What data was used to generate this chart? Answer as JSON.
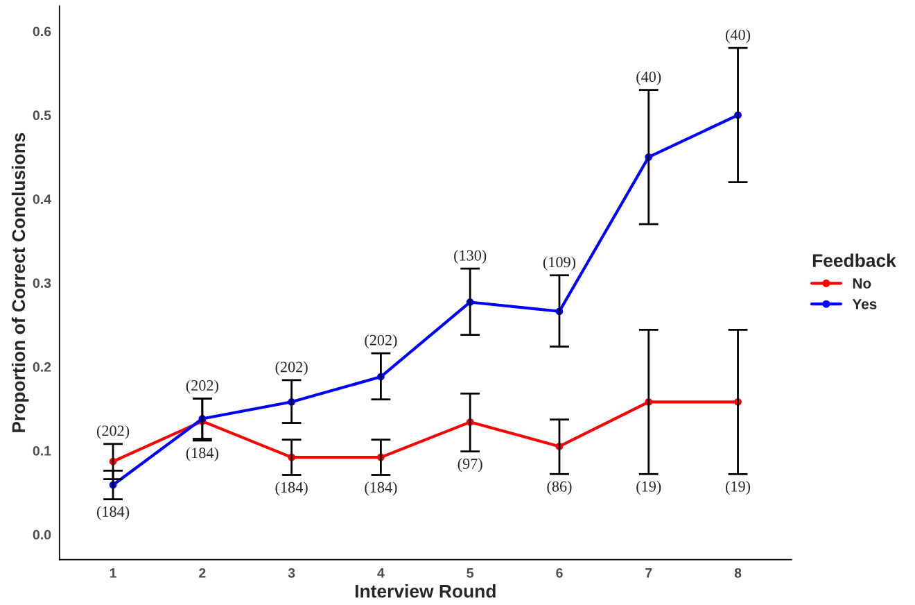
{
  "chart_data": {
    "type": "line",
    "xlabel": "Interview Round",
    "ylabel": "Proportion of Correct Conclusions",
    "legend_title": "Feedback",
    "legend": "right",
    "grid": false,
    "marker": "circle",
    "line_style": "solid",
    "categories": [
      "1",
      "2",
      "3",
      "4",
      "5",
      "6",
      "7",
      "8"
    ],
    "ylim": [
      -0.03,
      0.63
    ],
    "yticks": [
      {
        "value": 0,
        "label": "0.0"
      },
      0.1,
      0.2,
      0.3,
      0.4,
      0.5,
      0.6
    ],
    "series": [
      {
        "name": "No",
        "color": "#ff0000",
        "values": [
          0.087,
          0.135,
          0.092,
          0.092,
          0.134,
          0.105,
          0.158,
          0.158
        ],
        "errors": [
          [
            0.066,
            0.108
          ],
          [
            0.112,
            0.162
          ],
          [
            0.071,
            0.113
          ],
          [
            0.071,
            0.113
          ],
          [
            0.099,
            0.168
          ],
          [
            0.072,
            0.137
          ],
          [
            0.072,
            0.244
          ],
          [
            0.072,
            0.244
          ]
        ]
      },
      {
        "name": "Yes",
        "color": "#0000ff",
        "values": [
          0.059,
          0.138,
          0.158,
          0.188,
          0.277,
          0.266,
          0.45,
          0.5
        ],
        "errors": [
          [
            0.042,
            0.076
          ],
          [
            0.114,
            0.162
          ],
          [
            0.133,
            0.184
          ],
          [
            0.161,
            0.216
          ],
          [
            0.238,
            0.317
          ],
          [
            0.224,
            0.309
          ],
          [
            0.37,
            0.53
          ],
          [
            0.42,
            0.58
          ]
        ]
      }
    ],
    "annotations": [
      {
        "text": "(202)",
        "x": "1",
        "y": 0.108
      },
      {
        "text": "(184)",
        "x": "1",
        "y": 0.042
      },
      {
        "text": "(202)",
        "x": "2",
        "y": 0.162
      },
      {
        "text": "(184)",
        "x": "2",
        "y": 0.112
      },
      {
        "text": "(202)",
        "x": "3",
        "y": 0.184
      },
      {
        "text": "(184)",
        "x": "3",
        "y": 0.071
      },
      {
        "text": "(202)",
        "x": "4",
        "y": 0.216
      },
      {
        "text": "(184)",
        "x": "4",
        "y": 0.071
      },
      {
        "text": "(130)",
        "x": "5",
        "y": 0.317
      },
      {
        "text": "(97)",
        "x": "5",
        "y": 0.099
      },
      {
        "text": "(109)",
        "x": "6",
        "y": 0.309
      },
      {
        "text": "(86)",
        "x": "6",
        "y": 0.072
      },
      {
        "text": "(40)",
        "x": "7",
        "y": 0.53
      },
      {
        "text": "(19)",
        "x": "7",
        "y": 0.072
      },
      {
        "text": "(40)",
        "x": "8",
        "y": 0.58
      },
      {
        "text": "(19)",
        "x": "8",
        "y": 0.072
      }
    ]
  }
}
